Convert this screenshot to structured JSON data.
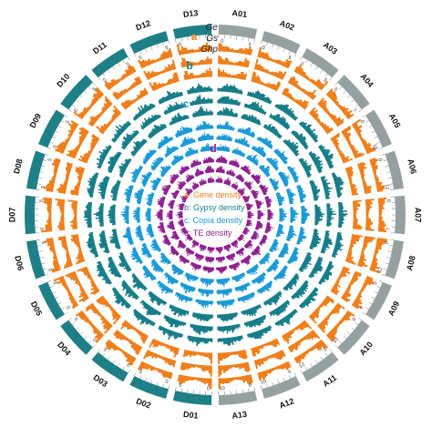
{
  "chromosomes": [
    {
      "name": "A01",
      "group": "A",
      "ticks": [
        "0",
        "5"
      ]
    },
    {
      "name": "A02",
      "group": "A",
      "ticks": [
        "0",
        "5"
      ]
    },
    {
      "name": "A03",
      "group": "A",
      "ticks": [
        "0",
        "5"
      ]
    },
    {
      "name": "A04",
      "group": "A",
      "ticks": [
        "0",
        "7"
      ]
    },
    {
      "name": "A05",
      "group": "A",
      "ticks": [
        "0",
        "10"
      ]
    },
    {
      "name": "A06",
      "group": "A",
      "ticks": [
        "0",
        "12"
      ]
    },
    {
      "name": "A07",
      "group": "A",
      "ticks": [
        "0",
        "7"
      ]
    },
    {
      "name": "A08",
      "group": "A",
      "ticks": [
        "0",
        "12"
      ]
    },
    {
      "name": "A09",
      "group": "A",
      "ticks": [
        "0",
        "7"
      ]
    },
    {
      "name": "A10",
      "group": "A",
      "ticks": [
        "0",
        "10"
      ]
    },
    {
      "name": "A11",
      "group": "A",
      "ticks": [
        "0",
        "12"
      ]
    },
    {
      "name": "A12",
      "group": "A",
      "ticks": [
        "0",
        "10"
      ]
    },
    {
      "name": "A13",
      "group": "A",
      "ticks": [
        "0",
        "10"
      ]
    },
    {
      "name": "D01",
      "group": "D",
      "ticks": [
        "0",
        "5"
      ]
    },
    {
      "name": "D02",
      "group": "D",
      "ticks": [
        "0",
        "5"
      ]
    },
    {
      "name": "D03",
      "group": "D",
      "ticks": [
        "0",
        "5"
      ]
    },
    {
      "name": "D04",
      "group": "D",
      "ticks": [
        "0",
        "5"
      ]
    },
    {
      "name": "D05",
      "group": "D",
      "ticks": [
        "0",
        "5"
      ]
    },
    {
      "name": "D06",
      "group": "D",
      "ticks": [
        "0",
        "5"
      ]
    },
    {
      "name": "D07",
      "group": "D",
      "ticks": [
        "0",
        "5"
      ]
    },
    {
      "name": "D08",
      "group": "D",
      "ticks": [
        "0",
        "5"
      ]
    },
    {
      "name": "D09",
      "group": "D",
      "ticks": [
        "0",
        "5"
      ]
    },
    {
      "name": "D10",
      "group": "D",
      "ticks": [
        "0",
        "5"
      ]
    },
    {
      "name": "D11",
      "group": "D",
      "ticks": [
        "0",
        "5"
      ]
    },
    {
      "name": "D12",
      "group": "D",
      "ticks": [
        "0",
        "5"
      ]
    },
    {
      "name": "D13",
      "group": "D",
      "ticks": [
        "0",
        "5"
      ]
    }
  ],
  "genome_labels": [
    "Ge",
    "Gs",
    "Ghp"
  ],
  "tracks": [
    {
      "letter": "a",
      "color": "#F07F1B"
    },
    {
      "letter": "b",
      "color": "#177E89"
    },
    {
      "letter": "c",
      "color": "#1B9AD6"
    },
    {
      "letter": "d",
      "color": "#8E1F8F"
    }
  ],
  "legend": [
    {
      "text": "a: Gene density",
      "color": "#F07F1B"
    },
    {
      "text": "b: Gypsy density",
      "color": "#177E89"
    },
    {
      "text": "c: Copia density",
      "color": "#1B9AD6"
    },
    {
      "text": "d: TE density",
      "color": "#8E1F8F"
    }
  ],
  "colors": {
    "A": "#95A1A1",
    "D": "#1F7F86"
  }
}
